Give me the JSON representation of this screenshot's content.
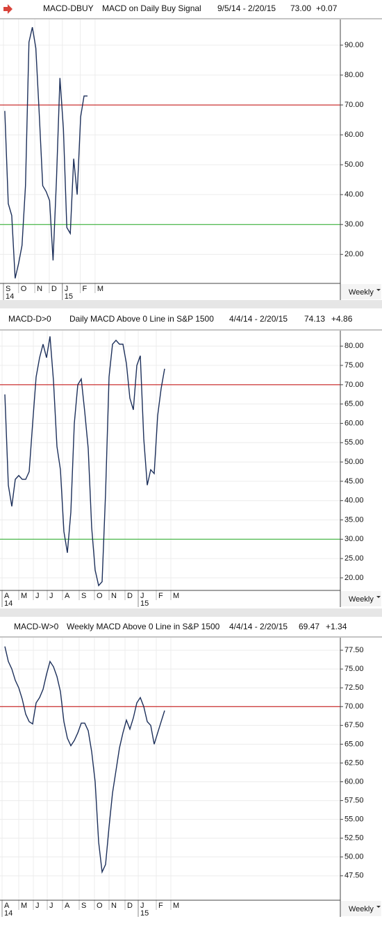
{
  "chart_data": [
    {
      "type": "line",
      "symbol": "MACD-DBUY",
      "title": "MACD on Daily Buy Signal",
      "date_range": "9/5/14 - 2/20/15",
      "last": "73.00",
      "change": "+0.07",
      "period": "Weekly",
      "color": "#1c2f5a",
      "values": [
        68,
        37,
        33,
        12,
        17,
        23,
        43,
        91,
        96,
        89,
        67,
        43,
        41,
        38,
        18,
        45,
        79,
        62,
        29,
        27,
        52,
        40,
        66,
        73,
        73
      ],
      "xlim": [
        -1.4,
        97.4
      ],
      "ylim": [
        10.3,
        98.6
      ],
      "yticks": [
        {
          "value": 20,
          "label": "20.00"
        },
        {
          "value": 30,
          "label": "30.00"
        },
        {
          "value": 40,
          "label": "40.00"
        },
        {
          "value": 50,
          "label": "50.00"
        },
        {
          "value": 60,
          "label": "60.00"
        },
        {
          "value": 70,
          "label": "70.00"
        },
        {
          "value": 80,
          "label": "80.00"
        },
        {
          "value": 90,
          "label": "90.00"
        }
      ],
      "xticks": [
        {
          "value": -0.4,
          "label": "S"
        },
        {
          "value": 4,
          "label": "O"
        },
        {
          "value": 8.7,
          "label": "N"
        },
        {
          "value": 12.9,
          "label": "D"
        },
        {
          "value": 16.7,
          "label": "J"
        },
        {
          "value": 21.9,
          "label": "F"
        },
        {
          "value": 26.2,
          "label": "M"
        }
      ],
      "year_labels": [
        {
          "value": -0.4,
          "label": "14"
        },
        {
          "value": 16.7,
          "label": "15"
        }
      ],
      "hlines": [
        {
          "value": 70,
          "color": "#c00000"
        },
        {
          "value": 30,
          "color": "#22aa22"
        }
      ],
      "grid": true
    },
    {
      "type": "line",
      "symbol": "MACD-D>0",
      "title": "Daily MACD Above 0 Line in S&P 1500",
      "date_range": "4/4/14 - 2/20/15",
      "last": "74.13",
      "change": "+4.86",
      "period": "Weekly",
      "color": "#1c2f5a",
      "values": [
        67.5,
        44,
        38.5,
        45.5,
        46.5,
        45.5,
        45.5,
        47.5,
        60,
        72,
        77,
        80.5,
        77,
        82.5,
        71,
        54,
        48,
        32,
        26.5,
        37,
        60,
        70,
        71.5,
        63,
        53.5,
        33,
        22,
        18,
        19,
        42,
        72,
        80.5,
        81.5,
        80.5,
        80.5,
        75.5,
        66.5,
        63.5,
        75,
        77.5,
        56,
        44,
        48,
        47,
        62,
        69,
        74.13
      ],
      "xlim": [
        -1.4,
        96.6
      ],
      "ylim": [
        16.75,
        84
      ],
      "yticks": [
        {
          "value": 20,
          "label": "20.00"
        },
        {
          "value": 25,
          "label": "25.00"
        },
        {
          "value": 30,
          "label": "30.00"
        },
        {
          "value": 35,
          "label": "35.00"
        },
        {
          "value": 40,
          "label": "40.00"
        },
        {
          "value": 45,
          "label": "45.00"
        },
        {
          "value": 50,
          "label": "50.00"
        },
        {
          "value": 55,
          "label": "55.00"
        },
        {
          "value": 60,
          "label": "60.00"
        },
        {
          "value": 65,
          "label": "65.00"
        },
        {
          "value": 70,
          "label": "70.00"
        },
        {
          "value": 75,
          "label": "75.00"
        },
        {
          "value": 80,
          "label": "80.00"
        }
      ],
      "xticks": [
        {
          "value": -0.8,
          "label": "A"
        },
        {
          "value": 4,
          "label": "M"
        },
        {
          "value": 8.2,
          "label": "J"
        },
        {
          "value": 12.2,
          "label": "J"
        },
        {
          "value": 16.6,
          "label": "A"
        },
        {
          "value": 21.4,
          "label": "S"
        },
        {
          "value": 25.8,
          "label": "O"
        },
        {
          "value": 30,
          "label": "N"
        },
        {
          "value": 34.6,
          "label": "D"
        },
        {
          "value": 38.4,
          "label": "J"
        },
        {
          "value": 43.6,
          "label": "F"
        },
        {
          "value": 47.8,
          "label": "M"
        }
      ],
      "year_labels": [
        {
          "value": -0.8,
          "label": "14"
        },
        {
          "value": 38.4,
          "label": "15"
        }
      ],
      "hlines": [
        {
          "value": 70,
          "color": "#c00000"
        },
        {
          "value": 30,
          "color": "#22aa22"
        }
      ],
      "grid": true
    },
    {
      "type": "line",
      "symbol": "MACD-W>0",
      "title": "Weekly MACD Above 0 Line in S&P 1500",
      "date_range": "4/4/14 - 2/20/15",
      "last": "69.47",
      "change": "+1.34",
      "period": "Weekly",
      "color": "#1c2f5a",
      "values": [
        78,
        76,
        75,
        73.5,
        72.5,
        71,
        69,
        68,
        67.7,
        70.5,
        71.2,
        72.3,
        74.3,
        76,
        75.3,
        74,
        72,
        68,
        65.8,
        64.8,
        65.5,
        66.5,
        67.8,
        67.8,
        66.8,
        64,
        60,
        52,
        48,
        49,
        54,
        58.5,
        61.5,
        64.5,
        66.5,
        68.2,
        67,
        68.5,
        70.5,
        71.2,
        70,
        68,
        67.5,
        65,
        66.5,
        68,
        69.47
      ],
      "xlim": [
        -1.4,
        96.6
      ],
      "ylim": [
        44.25,
        79.17
      ],
      "yticks": [
        {
          "value": 47.5,
          "label": "47.50"
        },
        {
          "value": 50,
          "label": "50.00"
        },
        {
          "value": 52.5,
          "label": "52.50"
        },
        {
          "value": 55,
          "label": "55.00"
        },
        {
          "value": 57.5,
          "label": "57.50"
        },
        {
          "value": 60,
          "label": "60.00"
        },
        {
          "value": 62.5,
          "label": "62.50"
        },
        {
          "value": 65,
          "label": "65.00"
        },
        {
          "value": 67.5,
          "label": "67.50"
        },
        {
          "value": 70,
          "label": "70.00"
        },
        {
          "value": 72.5,
          "label": "72.50"
        },
        {
          "value": 75,
          "label": "75.00"
        },
        {
          "value": 77.5,
          "label": "77.50"
        }
      ],
      "xticks": [
        {
          "value": -0.8,
          "label": "A"
        },
        {
          "value": 4,
          "label": "M"
        },
        {
          "value": 8.2,
          "label": "J"
        },
        {
          "value": 12.2,
          "label": "J"
        },
        {
          "value": 16.6,
          "label": "A"
        },
        {
          "value": 21.4,
          "label": "S"
        },
        {
          "value": 25.8,
          "label": "O"
        },
        {
          "value": 30,
          "label": "N"
        },
        {
          "value": 34.6,
          "label": "D"
        },
        {
          "value": 38.4,
          "label": "J"
        },
        {
          "value": 43.6,
          "label": "F"
        },
        {
          "value": 47.8,
          "label": "M"
        }
      ],
      "year_labels": [
        {
          "value": -0.8,
          "label": "14"
        },
        {
          "value": 38.4,
          "label": "15"
        }
      ],
      "hlines": [
        {
          "value": 70,
          "color": "#c00000"
        }
      ],
      "grid": true
    }
  ]
}
